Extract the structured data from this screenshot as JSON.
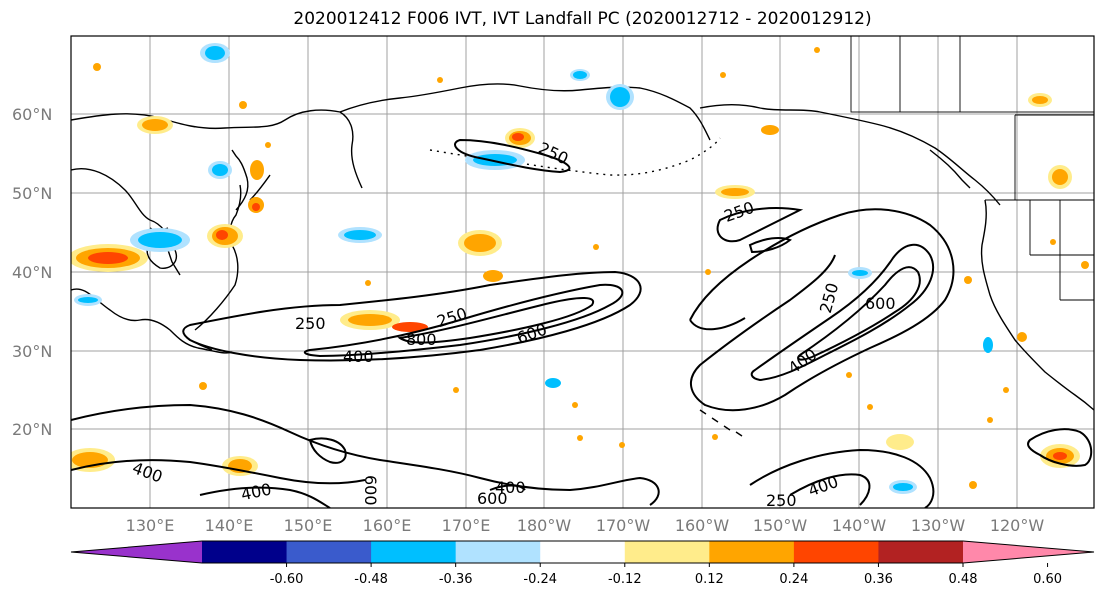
{
  "title": "2020012412 F006 IVT, IVT Landfall PC (2020012712 - 2020012912)",
  "lat_labels": [
    "60°N",
    "50°N",
    "40°N",
    "30°N",
    "20°N"
  ],
  "lon_labels": [
    "130°E",
    "140°E",
    "150°E",
    "160°E",
    "170°E",
    "180°W",
    "170°W",
    "160°W",
    "150°W",
    "140°W",
    "130°W",
    "120°W"
  ],
  "colorbar": {
    "colors": [
      "#9932cc",
      "#00008b",
      "#3a5bcc",
      "#00bfff",
      "#b0e2ff",
      "#ffffff",
      "#ffec8b",
      "#ffa500",
      "#ff4500",
      "#b22222",
      "#ff88aa"
    ],
    "ticks": [
      "-0.60",
      "-0.48",
      "-0.36",
      "-0.24",
      "-0.12",
      "0.12",
      "0.24",
      "0.36",
      "0.48",
      "0.60"
    ]
  },
  "contour_labels": [
    "250",
    "250",
    "250",
    "250",
    "400",
    "400",
    "400",
    "400",
    "400",
    "600",
    "600",
    "600",
    "800",
    "250",
    "400",
    "250",
    "600"
  ],
  "colors": {
    "frame": "#000000",
    "grid": "#a0a0a0",
    "axis_label": "#7a7a7a"
  }
}
